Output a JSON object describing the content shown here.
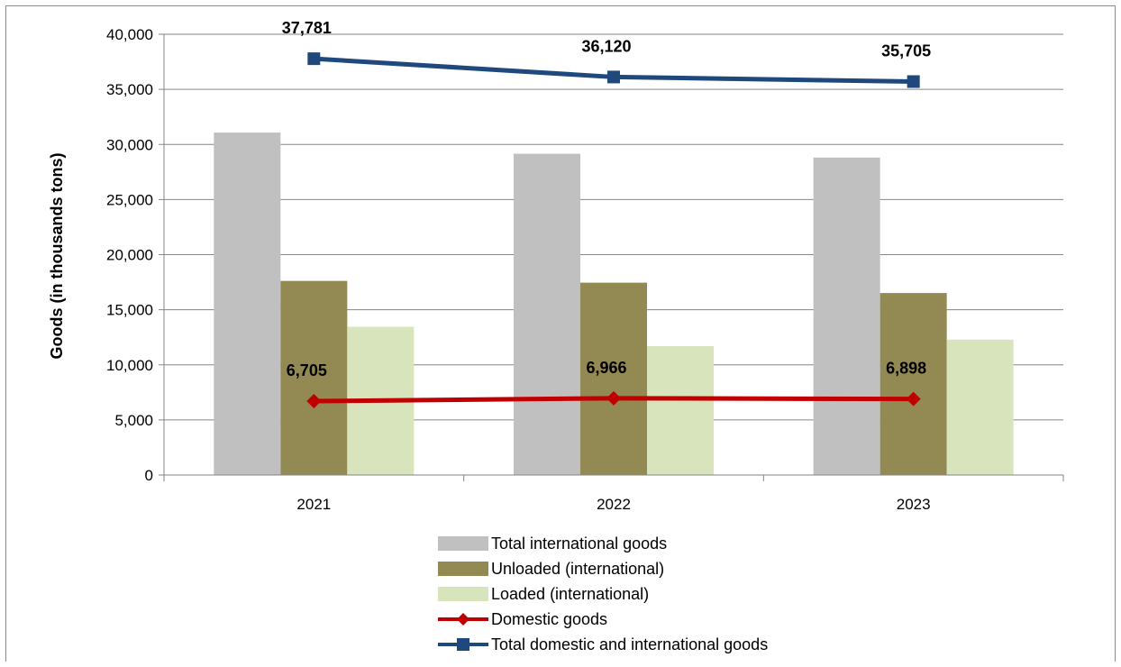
{
  "chart_data": {
    "type": "bar",
    "categories": [
      "2021",
      "2022",
      "2023"
    ],
    "ylabel": "Goods (in thousands tons)",
    "xlabel": "",
    "ylim": [
      0,
      40000
    ],
    "yticks": [
      "0",
      "5,000",
      "10,000",
      "15,000",
      "20,000",
      "25,000",
      "30,000",
      "35,000",
      "40,000"
    ],
    "grid": true,
    "legend_position": "bottom",
    "series": [
      {
        "name": "Total international goods",
        "kind": "bar",
        "color": "#c0c0c0",
        "values": [
          31076,
          29154,
          28807
        ]
      },
      {
        "name": "Unloaded (international)",
        "kind": "bar",
        "color": "#938953",
        "values": [
          17615,
          17455,
          16516
        ]
      },
      {
        "name": "Loaded (international)",
        "kind": "bar",
        "color": "#d8e4bc",
        "values": [
          13461,
          11699,
          12291
        ]
      },
      {
        "name": "Domestic goods",
        "kind": "line",
        "color": "#c00000",
        "marker": "diamond",
        "values": [
          6705,
          6966,
          6898
        ],
        "labels": [
          "6,705",
          "6,966",
          "6,898"
        ]
      },
      {
        "name": "Total domestic and international goods",
        "kind": "line",
        "color": "#1f497d",
        "marker": "square",
        "values": [
          37781,
          36120,
          35705
        ],
        "labels": [
          "37,781",
          "36,120",
          "35,705"
        ]
      }
    ]
  }
}
